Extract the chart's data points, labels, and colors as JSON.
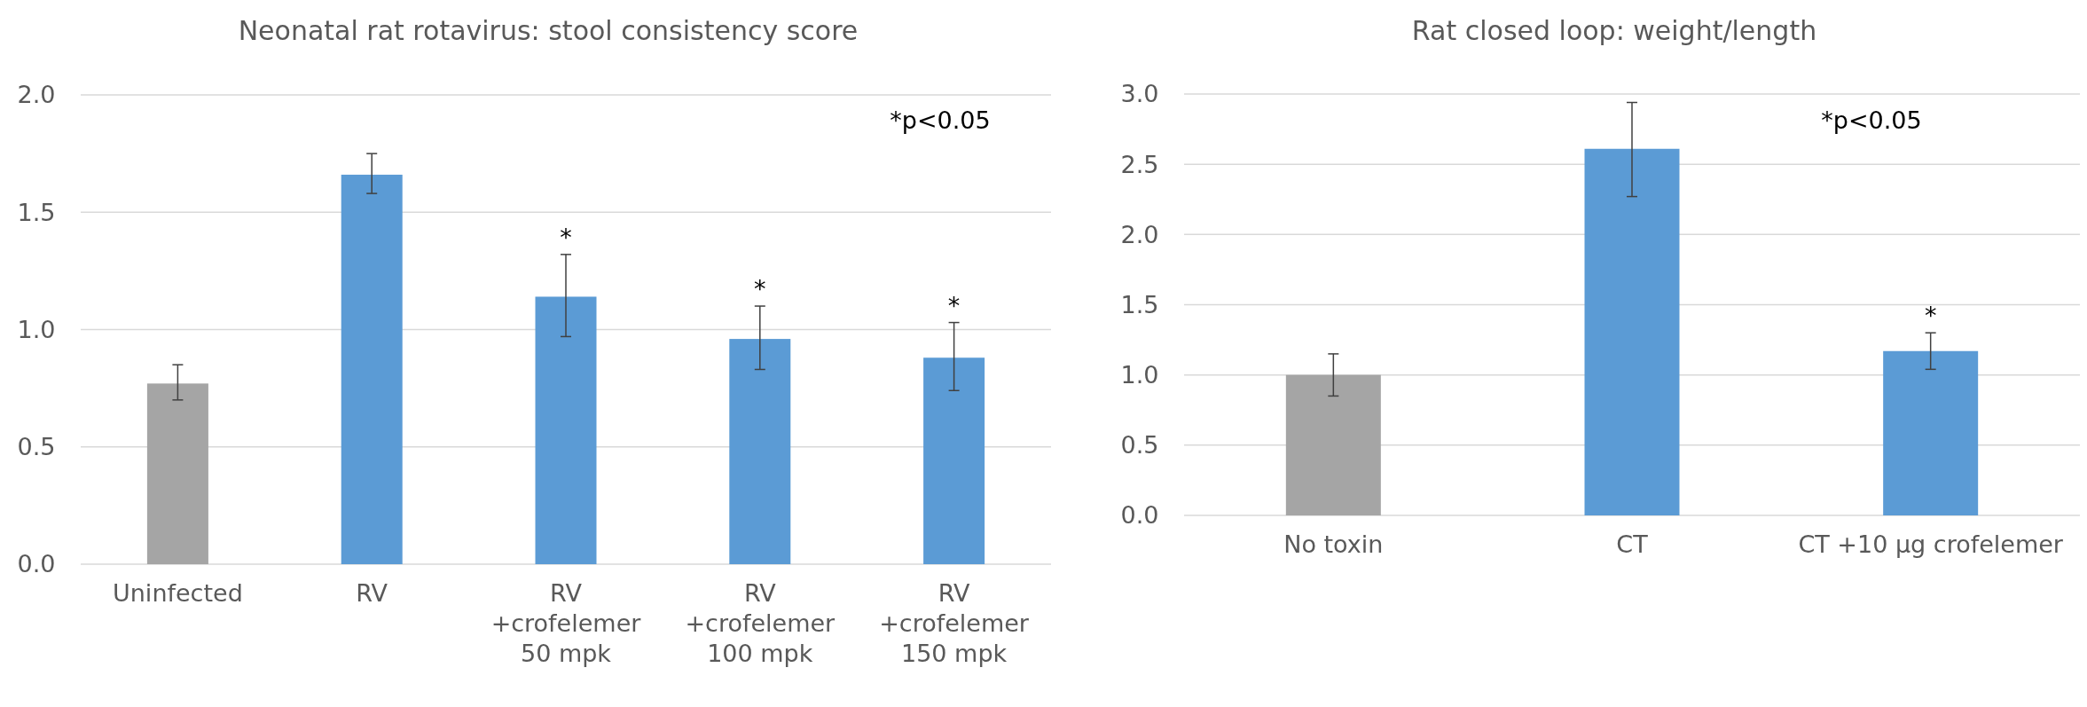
{
  "chart_data": [
    {
      "type": "bar",
      "title": "Neonatal rat rotavirus: stool consistency score",
      "categories": [
        "Uninfected",
        "RV",
        "RV\n+crofelemer\n50 mpk",
        "RV\n+crofelemer\n100 mpk",
        "RV\n+crofelemer\n150 mpk"
      ],
      "values": [
        0.77,
        1.66,
        1.14,
        0.96,
        0.88
      ],
      "colors": [
        "#a5a5a5",
        "#5b9bd5",
        "#5b9bd5",
        "#5b9bd5",
        "#5b9bd5"
      ],
      "errors": [
        [
          0.7,
          0.85
        ],
        [
          1.58,
          1.75
        ],
        [
          0.97,
          1.32
        ],
        [
          0.83,
          1.1
        ],
        [
          0.74,
          1.03
        ]
      ],
      "ylim": [
        0,
        2
      ],
      "yticks": [
        {
          "value": 0,
          "label": "0.0"
        },
        {
          "value": 0.5,
          "label": "0.5"
        },
        {
          "value": 1,
          "label": "1.0"
        },
        {
          "value": 1.5,
          "label": "1.5"
        },
        {
          "value": 2,
          "label": "2.0"
        }
      ],
      "grid": "y",
      "annotations": [
        "*p<0.05",
        {
          "text": "*",
          "x": "RV\n+crofelemer\n50 mpk",
          "y": 1.32
        },
        {
          "text": "*",
          "x": "RV\n+crofelemer\n100 mpk",
          "y": 1.1
        },
        {
          "text": "*",
          "x": "RV\n+crofelemer\n150 mpk",
          "y": 1.03
        }
      ]
    },
    {
      "type": "bar",
      "title": "Rat closed loop: weight/length",
      "categories": [
        "No toxin",
        "CT",
        "CT +10 µg crofelemer"
      ],
      "values": [
        1.0,
        2.61,
        1.17
      ],
      "colors": [
        "#a5a5a5",
        "#5b9bd5",
        "#5b9bd5"
      ],
      "errors": [
        [
          0.85,
          1.15
        ],
        [
          2.27,
          2.94
        ],
        [
          1.04,
          1.3
        ]
      ],
      "ylim": [
        0,
        3
      ],
      "yticks": [
        {
          "value": 0,
          "label": "0.0"
        },
        {
          "value": 0.5,
          "label": "0.5"
        },
        {
          "value": 1,
          "label": "1.0"
        },
        {
          "value": 1.5,
          "label": "1.5"
        },
        {
          "value": 2,
          "label": "2.0"
        },
        {
          "value": 2.5,
          "label": "2.5"
        },
        {
          "value": 3,
          "label": "3.0"
        }
      ],
      "grid": "y",
      "annotations": [
        "*p<0.05",
        {
          "text": "*",
          "x": "CT +10 µg crofelemer",
          "y": 1.3
        }
      ]
    }
  ]
}
